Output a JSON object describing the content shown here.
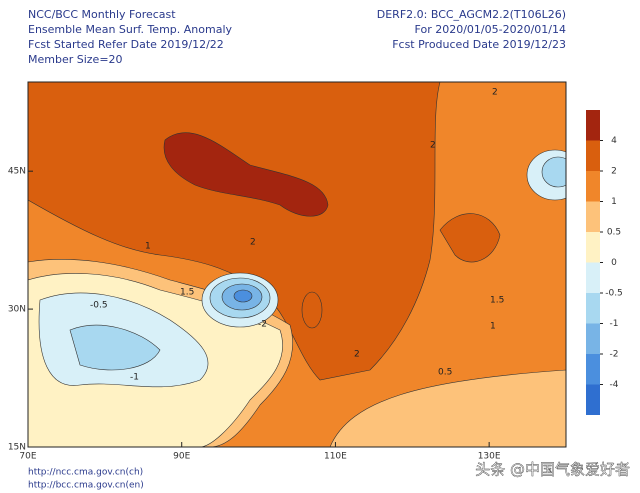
{
  "header_left": [
    "NCC/BCC Monthly Forecast",
    "Ensemble Mean Surf. Temp. Anomaly",
    "Fcst Started Refer Date 2019/12/22",
    "Member Size=20"
  ],
  "header_right": [
    "DERF2.0: BCC_AGCM2.2(T106L26)",
    "For 2020/01/05-2020/01/14",
    "Fcst Produced Date 2019/12/23"
  ],
  "map": {
    "xlim": [
      70,
      140
    ],
    "ylim": [
      15,
      54.7
    ],
    "xticks": [
      {
        "value": 70,
        "label": "70E"
      },
      {
        "value": 90,
        "label": "90E"
      },
      {
        "value": 110,
        "label": "110E"
      },
      {
        "value": 130,
        "label": "130E"
      }
    ],
    "yticks": [
      {
        "value": 15,
        "label": "15N"
      },
      {
        "value": 30,
        "label": "30N"
      },
      {
        "value": 45,
        "label": "45N"
      }
    ],
    "contour_labels": [
      "2",
      "2",
      "2",
      "1",
      "1.5",
      "-1",
      "-0.5",
      "0.5",
      "1",
      "2",
      "1.5",
      "-2"
    ]
  },
  "colorbar": {
    "levels": [
      4,
      2,
      1,
      0.5,
      0,
      -0.5,
      -1,
      -2,
      -4
    ],
    "colors": [
      "#a3250f",
      "#d95f0e",
      "#f0862a",
      "#fdc27a",
      "#fff2c4",
      "#d8f0f8",
      "#a8d8f0",
      "#78b4e6",
      "#4b8fde",
      "#2f6fd0"
    ]
  },
  "footer": [
    "http://ncc.cma.gov.cn(ch)",
    "http://bcc.cma.gov.cn(en)"
  ],
  "watermark": "头条 @中国气象爱好者"
}
